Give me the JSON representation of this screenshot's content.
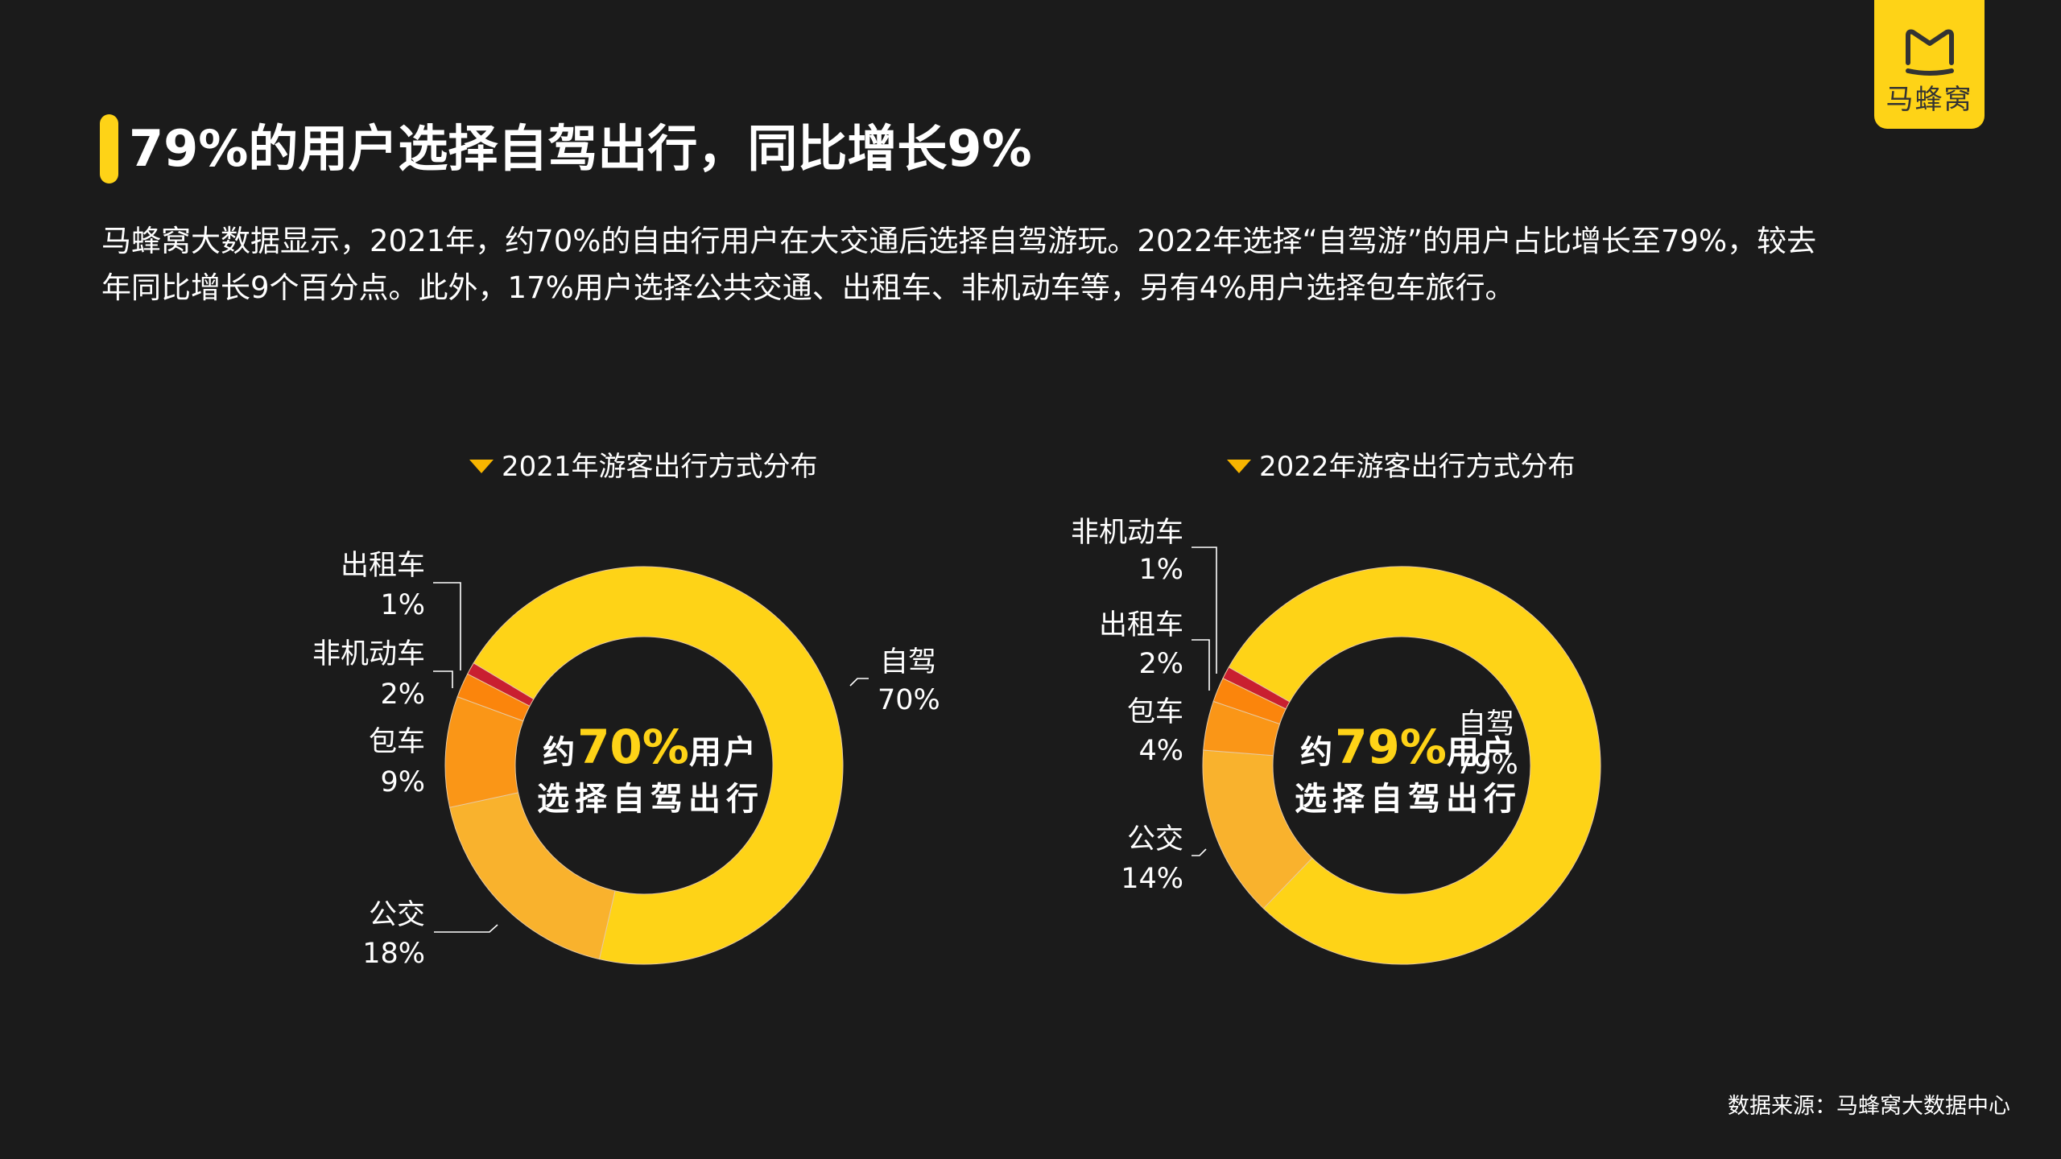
{
  "brand": {
    "logo_icon": "mafengwo-m-icon",
    "logo_text": "马蜂窝",
    "color": "#FED317"
  },
  "header": {
    "title": "79%的用户选择自驾出行，同比增长9%"
  },
  "description": {
    "line1": "马蜂窝大数据显示，2021年，约70%的自由行用户在大交通后选择自驾游玩。2022年选择“自驾游”的用户占比增长至79%，较去",
    "line2": "年同比增长9个百分点。此外，17%用户选择公共交通、出租车、非机动车等，另有4%用户选择包车旅行。"
  },
  "footer": {
    "source": "数据来源：马蜂窝大数据中心"
  },
  "colors": {
    "自驾": "#FED317",
    "公交": "#F9B22D",
    "包车": "#FA9617",
    "orange_small": "#FB850C",
    "red_small": "#C91F30",
    "background": "#1b1b1b"
  },
  "chart_data": [
    {
      "type": "pie",
      "subtype": "donut",
      "title": "2021年游客出行方式分布",
      "center_text": {
        "prefix": "约",
        "highlight": "70%",
        "suffix": "用户",
        "line2": "选择自驾出行"
      },
      "categories": [
        "自驾",
        "公交",
        "包车",
        "非机动车",
        "出租车"
      ],
      "values": [
        70,
        18,
        9,
        2,
        1
      ],
      "labels": [
        "70%",
        "18%",
        "9%",
        "2%",
        "1%"
      ],
      "colors": [
        "#FED317",
        "#F9B22D",
        "#FA9617",
        "#FB850C",
        "#C91F30"
      ]
    },
    {
      "type": "pie",
      "subtype": "donut",
      "title": "2022年游客出行方式分布",
      "center_text": {
        "prefix": "约",
        "highlight": "79%",
        "suffix": "用户",
        "line2": "选择自驾出行"
      },
      "categories": [
        "自驾",
        "公交",
        "包车",
        "出租车",
        "非机动车"
      ],
      "values": [
        79,
        14,
        4,
        2,
        1
      ],
      "labels": [
        "79%",
        "14%",
        "4%",
        "2%",
        "1%"
      ],
      "colors": [
        "#FED317",
        "#F9B22D",
        "#FA9617",
        "#FB850C",
        "#C91F30"
      ]
    }
  ],
  "chart1_labels": {
    "taxi_name": "出租车",
    "taxi_pct": "1%",
    "bike_name": "非机动车",
    "bike_pct": "2%",
    "charter_name": "包车",
    "charter_pct": "9%",
    "bus_name": "公交",
    "bus_pct": "18%",
    "self_name": "自驾",
    "self_pct": "70%"
  },
  "chart2_labels": {
    "bike_name": "非机动车",
    "bike_pct": "1%",
    "taxi_name": "出租车",
    "taxi_pct": "2%",
    "charter_name": "包车",
    "charter_pct": "4%",
    "bus_name": "公交",
    "bus_pct": "14%",
    "self_name": "自驾",
    "self_pct": "79%"
  }
}
